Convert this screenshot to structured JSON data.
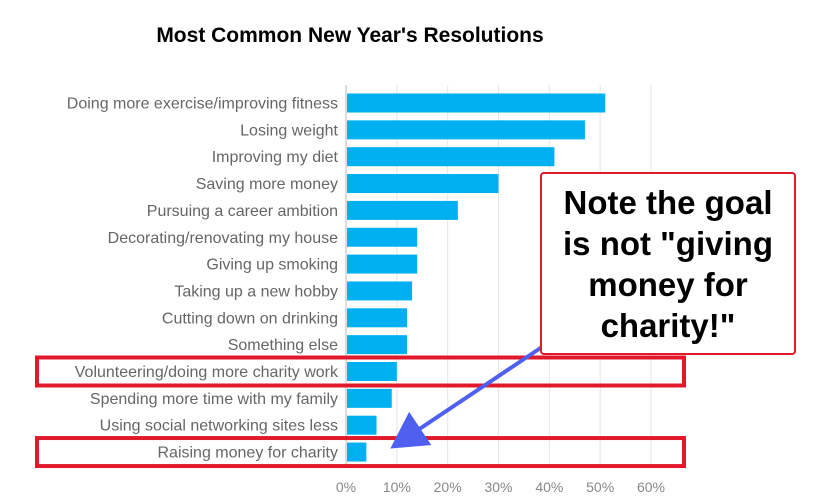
{
  "chart_data": {
    "type": "bar",
    "orientation": "horizontal",
    "title": "Most Common New Year's Resolutions",
    "xlabel": "",
    "ylabel": "",
    "categories": [
      "Doing more exercise/improving fitness",
      "Losing weight",
      "Improving my diet",
      "Saving more money",
      "Pursuing a career ambition",
      "Decorating/renovating my house",
      "Giving up smoking",
      "Taking up a new hobby",
      "Cutting down on drinking",
      "Something else",
      "Volunteering/doing more charity work",
      "Spending more time with my family",
      "Using social networking sites less",
      "Raising money for charity"
    ],
    "values": [
      51,
      47,
      41,
      30,
      22,
      14,
      14,
      13,
      12,
      12,
      10,
      9,
      6,
      4
    ],
    "xlim": [
      0,
      60
    ],
    "xticks": [
      "0%",
      "10%",
      "20%",
      "30%",
      "40%",
      "50%",
      "60%"
    ],
    "grid": true,
    "bar_color": "#00b0f0",
    "highlight_color": "#e0192b",
    "highlighted_categories": [
      "Volunteering/doing more charity work",
      "Raising money for charity"
    ],
    "annotation": "Note the goal is not \"giving money for charity!\""
  }
}
